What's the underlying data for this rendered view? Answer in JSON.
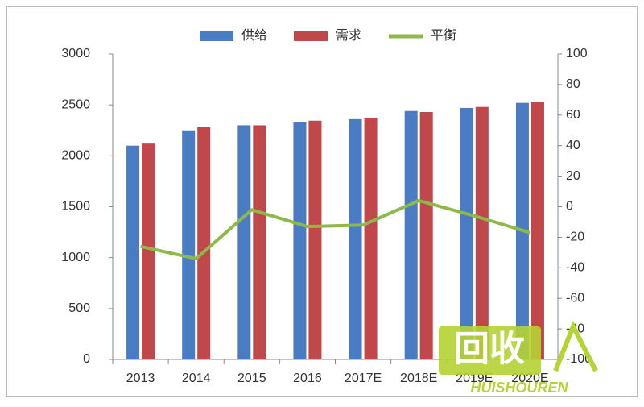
{
  "chart_data": {
    "type": "bar",
    "categories": [
      "2013",
      "2014",
      "2015",
      "2016",
      "2017E",
      "2018E",
      "2019E",
      "2020E"
    ],
    "series": [
      {
        "name": "供给",
        "color": "#4a7cc4",
        "values": [
          2100,
          2250,
          2300,
          2335,
          2360,
          2440,
          2470,
          2520
        ]
      },
      {
        "name": "需求",
        "color": "#c0474a",
        "values": [
          2120,
          2280,
          2300,
          2345,
          2375,
          2430,
          2480,
          2530
        ]
      },
      {
        "name": "平衡",
        "type": "line",
        "axis": "y2",
        "color": "#8db84a",
        "values": [
          -26,
          -34,
          -2,
          -13,
          -12,
          4,
          -6,
          -17
        ]
      }
    ],
    "ylim": [
      0,
      3000
    ],
    "yticks": [
      0,
      500,
      1000,
      1500,
      2000,
      2500,
      3000
    ],
    "y2lim": [
      -100,
      100
    ],
    "y2ticks": [
      -100,
      -80,
      -60,
      -40,
      -20,
      0,
      20,
      40,
      60,
      80,
      100
    ],
    "grid": false
  },
  "watermark": {
    "logo": "回收",
    "brand": "HUISHOUREN"
  }
}
